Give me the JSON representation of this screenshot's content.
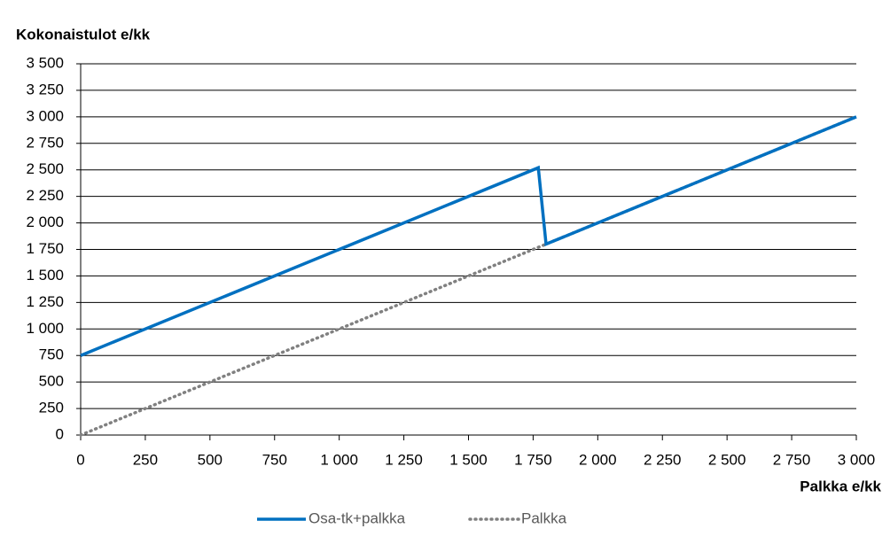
{
  "chart_data": {
    "type": "line",
    "y_label": "Kokonaistulot e/kk",
    "x_label": "Palkka e/kk",
    "series": [
      {
        "name": "Osa-tk+palkka",
        "color": "#0070c0",
        "style": "solid",
        "x": [
          0,
          1770,
          1800,
          3000
        ],
        "values": [
          750,
          2520,
          1800,
          3000
        ]
      },
      {
        "name": "Palkka",
        "color": "#808080",
        "style": "dotted",
        "x": [
          0,
          3000
        ],
        "values": [
          0,
          3000
        ]
      }
    ],
    "xlim": [
      0,
      3000
    ],
    "xticks": [
      0,
      250,
      500,
      750,
      {
        "value": 1000,
        "label": "1 000"
      },
      {
        "value": 1250,
        "label": "1 250"
      },
      {
        "value": 1500,
        "label": "1 500"
      },
      {
        "value": 1750,
        "label": "1 750"
      },
      {
        "value": 2000,
        "label": "2 000"
      },
      {
        "value": 2250,
        "label": "2 250"
      },
      {
        "value": 2500,
        "label": "2 500"
      },
      {
        "value": 2750,
        "label": "2 750"
      },
      {
        "value": 3000,
        "label": "3 000"
      }
    ],
    "ylim": [
      0,
      3500
    ],
    "yticks": [
      0,
      250,
      500,
      750,
      {
        "value": 1000,
        "label": "1 000"
      },
      {
        "value": 1250,
        "label": "1 250"
      },
      {
        "value": 1500,
        "label": "1 500"
      },
      {
        "value": 1750,
        "label": "1 750"
      },
      {
        "value": 2000,
        "label": "2 000"
      },
      {
        "value": 2250,
        "label": "2 250"
      },
      {
        "value": 2500,
        "label": "2 500"
      },
      {
        "value": 2750,
        "label": "2 750"
      },
      {
        "value": 3000,
        "label": "3 000"
      },
      {
        "value": 3250,
        "label": "3 250"
      },
      {
        "value": 3500,
        "label": "3 500"
      }
    ],
    "grid": true,
    "legend": "bottom"
  }
}
